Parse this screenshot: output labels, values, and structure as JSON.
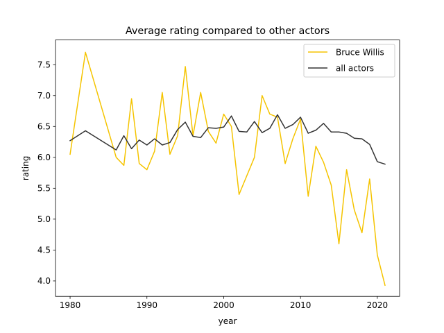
{
  "chart_data": {
    "type": "line",
    "title": "Average rating compared to other actors",
    "xlabel": "year",
    "ylabel": "rating",
    "xlim": [
      1978.1,
      2022.9
    ],
    "ylim": [
      3.75,
      7.9
    ],
    "xticks": [
      1980,
      1990,
      2000,
      2010,
      2020
    ],
    "yticks": [
      4.0,
      4.5,
      5.0,
      5.5,
      6.0,
      6.5,
      7.0,
      7.5
    ],
    "xtick_labels": [
      "1980",
      "1990",
      "2000",
      "2010",
      "2020"
    ],
    "ytick_labels": [
      "4.0",
      "4.5",
      "5.0",
      "5.5",
      "6.0",
      "6.5",
      "7.0",
      "7.5"
    ],
    "grid": false,
    "legend_position": "upper right",
    "series": [
      {
        "name": "Bruce Willis",
        "color": "#f5c400",
        "x": [
          1980,
          1982,
          1986,
          1987,
          1988,
          1989,
          1990,
          1991,
          1992,
          1993,
          1994,
          1995,
          1996,
          1997,
          1998,
          1999,
          2000,
          2001,
          2002,
          2004,
          2005,
          2006,
          2007,
          2008,
          2009,
          2010,
          2011,
          2012,
          2013,
          2014,
          2015,
          2016,
          2017,
          2018,
          2019,
          2020,
          2021
        ],
        "y": [
          6.05,
          7.7,
          6.0,
          5.87,
          6.95,
          5.9,
          5.8,
          6.1,
          7.05,
          6.05,
          6.35,
          7.47,
          6.35,
          7.05,
          6.42,
          6.23,
          6.7,
          6.5,
          5.4,
          6.0,
          7.0,
          6.7,
          6.65,
          5.9,
          6.3,
          6.62,
          5.37,
          6.18,
          5.92,
          5.55,
          4.6,
          5.8,
          5.15,
          4.78,
          5.65,
          4.42,
          3.93
        ]
      },
      {
        "name": "all actors",
        "color": "#333333",
        "x": [
          1980,
          1982,
          1986,
          1987,
          1988,
          1989,
          1990,
          1991,
          1992,
          1993,
          1994,
          1995,
          1996,
          1997,
          1998,
          1999,
          2000,
          2001,
          2002,
          2003,
          2004,
          2005,
          2006,
          2007,
          2008,
          2009,
          2010,
          2011,
          2012,
          2013,
          2014,
          2015,
          2016,
          2017,
          2018,
          2019,
          2020,
          2021
        ],
        "y": [
          6.27,
          6.43,
          6.12,
          6.35,
          6.14,
          6.28,
          6.2,
          6.3,
          6.2,
          6.24,
          6.45,
          6.57,
          6.34,
          6.32,
          6.48,
          6.47,
          6.49,
          6.67,
          6.42,
          6.41,
          6.58,
          6.4,
          6.47,
          6.69,
          6.47,
          6.53,
          6.65,
          6.39,
          6.44,
          6.55,
          6.41,
          6.41,
          6.39,
          6.31,
          6.3,
          6.21,
          5.93,
          5.89
        ]
      }
    ]
  }
}
